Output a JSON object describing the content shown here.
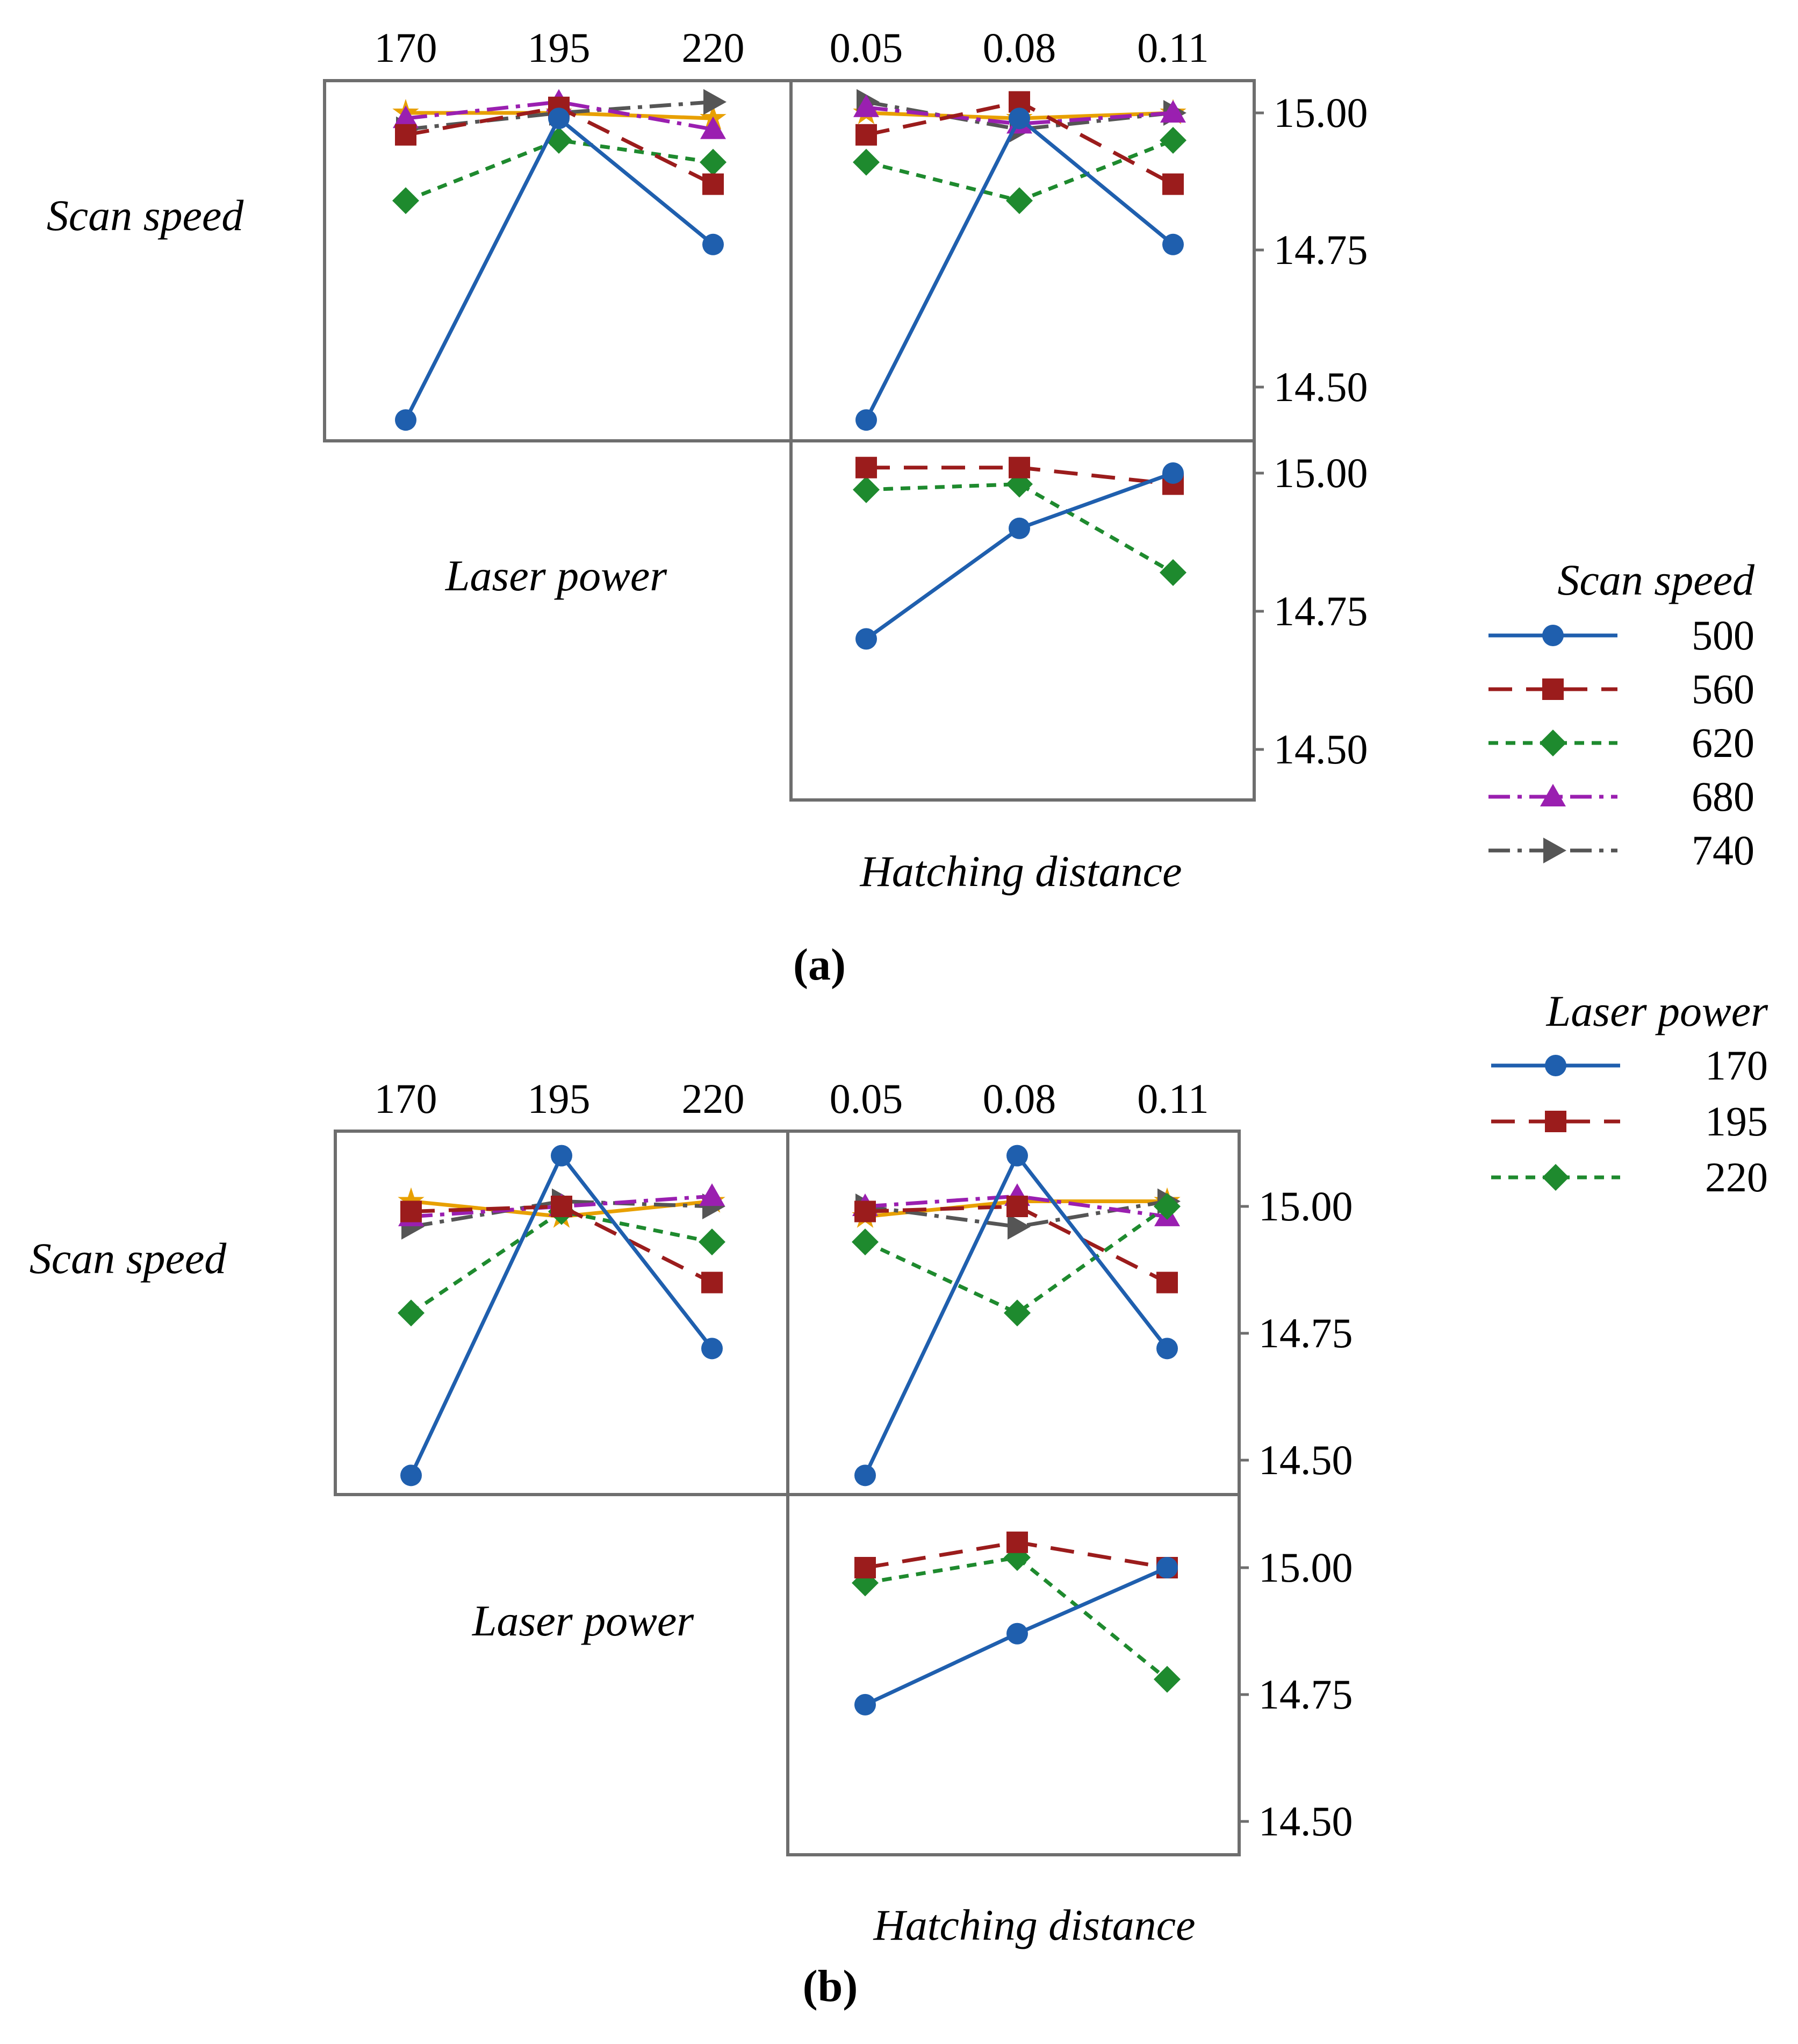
{
  "figure": {
    "panels": [
      {
        "id": "a",
        "caption": "(a)",
        "legend": {
          "title": "Scan speed",
          "entries": [
            {
              "label": "500",
              "color": "#1f5fae",
              "marker": "circle",
              "dash": "solid"
            },
            {
              "label": "560",
              "color": "#9b1c1c",
              "marker": "square",
              "dash": "long-dash"
            },
            {
              "label": "620",
              "color": "#1e8a2e",
              "marker": "diamond",
              "dash": "short-dash"
            },
            {
              "label": "680",
              "color": "#9a1fb0",
              "marker": "triangle-up",
              "dash": "dash-dot"
            },
            {
              "label": "740",
              "color": "#555555",
              "marker": "triangle-right",
              "dash": "dash-dot"
            }
          ]
        },
        "factor_labels": {
          "left": "Scan speed",
          "middle": "Laser power",
          "bottom": "Hatching distance"
        },
        "top_ticks": {
          "laser_power": [
            "170",
            "195",
            "220"
          ],
          "hatching_distance": [
            "0.05",
            "0.08",
            "0.11"
          ]
        },
        "y_ticks": {
          "upper": [
            "15.00",
            "14.75",
            "14.50"
          ],
          "lower": [
            "15.00",
            "14.75",
            "14.50"
          ]
        }
      },
      {
        "id": "b",
        "caption": "(b)",
        "legend": {
          "title": "Laser power",
          "entries": [
            {
              "label": "170",
              "color": "#1f5fae",
              "marker": "circle",
              "dash": "solid"
            },
            {
              "label": "195",
              "color": "#9b1c1c",
              "marker": "square",
              "dash": "long-dash"
            },
            {
              "label": "220",
              "color": "#1e8a2e",
              "marker": "diamond",
              "dash": "short-dash"
            }
          ]
        },
        "factor_labels": {
          "left": "Scan speed",
          "middle": "Laser power",
          "bottom": "Hatching distance"
        },
        "top_ticks": {
          "laser_power": [
            "170",
            "195",
            "220"
          ],
          "hatching_distance": [
            "0.05",
            "0.08",
            "0.11"
          ]
        },
        "y_ticks": {
          "upper": [
            "15.00",
            "14.75",
            "14.50"
          ],
          "lower": [
            "15.00",
            "14.75",
            "14.50"
          ]
        }
      }
    ]
  },
  "chart_data": [
    {
      "type": "line",
      "panel": "a",
      "subplot": "Scan speed x Laser power",
      "legend_title": "Scan speed",
      "categories": [
        "170",
        "195",
        "220"
      ],
      "ylim": [
        14.41,
        15.06
      ],
      "series": [
        {
          "name": "500",
          "values": [
            14.44,
            14.99,
            14.76
          ]
        },
        {
          "name": "560",
          "values": [
            14.96,
            15.01,
            14.87
          ]
        },
        {
          "name": "620",
          "values": [
            14.84,
            14.95,
            14.91
          ]
        },
        {
          "name": "680",
          "values": [
            14.99,
            15.02,
            14.97
          ]
        },
        {
          "name": "740",
          "values": [
            14.97,
            15.0,
            15.02
          ]
        },
        {
          "name": "",
          "color": "#e8a000",
          "values": [
            15.0,
            15.0,
            14.99
          ]
        }
      ]
    },
    {
      "type": "line",
      "panel": "a",
      "subplot": "Scan speed x Hatching distance",
      "legend_title": "Scan speed",
      "categories": [
        "0.05",
        "0.08",
        "0.11"
      ],
      "ylim": [
        14.41,
        15.06
      ],
      "series": [
        {
          "name": "500",
          "values": [
            14.44,
            14.99,
            14.76
          ]
        },
        {
          "name": "560",
          "values": [
            14.96,
            15.02,
            14.87
          ]
        },
        {
          "name": "620",
          "values": [
            14.91,
            14.84,
            14.95
          ]
        },
        {
          "name": "680",
          "values": [
            15.01,
            14.98,
            15.0
          ]
        },
        {
          "name": "740",
          "values": [
            15.02,
            14.97,
            15.0
          ]
        },
        {
          "name": "",
          "color": "#e8a000",
          "values": [
            15.0,
            14.99,
            15.0
          ]
        }
      ]
    },
    {
      "type": "line",
      "panel": "a",
      "subplot": "Laser power x Hatching distance",
      "legend_title": "Laser power",
      "categories": [
        "0.05",
        "0.08",
        "0.11"
      ],
      "ylim": [
        14.41,
        15.06
      ],
      "series": [
        {
          "name": "170",
          "values": [
            14.7,
            14.9,
            15.0
          ]
        },
        {
          "name": "195",
          "values": [
            15.01,
            15.01,
            14.98
          ]
        },
        {
          "name": "220",
          "values": [
            14.97,
            14.98,
            14.82
          ]
        }
      ]
    },
    {
      "type": "line",
      "panel": "b",
      "subplot": "Scan speed x Laser power",
      "legend_title": "Scan speed",
      "categories": [
        "170",
        "195",
        "220"
      ],
      "ylim": [
        14.43,
        15.14
      ],
      "series": [
        {
          "name": "500",
          "values": [
            14.47,
            15.1,
            14.72
          ]
        },
        {
          "name": "560",
          "values": [
            14.99,
            15.0,
            14.85
          ]
        },
        {
          "name": "620",
          "values": [
            14.79,
            14.99,
            14.93
          ]
        },
        {
          "name": "680",
          "values": [
            14.98,
            15.0,
            15.02
          ]
        },
        {
          "name": "740",
          "values": [
            14.96,
            15.01,
            15.0
          ]
        },
        {
          "name": "",
          "color": "#e8a000",
          "values": [
            15.01,
            14.98,
            15.01
          ]
        }
      ]
    },
    {
      "type": "line",
      "panel": "b",
      "subplot": "Scan speed x Hatching distance",
      "legend_title": "Scan speed",
      "categories": [
        "0.05",
        "0.08",
        "0.11"
      ],
      "ylim": [
        14.43,
        15.14
      ],
      "series": [
        {
          "name": "500",
          "values": [
            14.47,
            15.1,
            14.72
          ]
        },
        {
          "name": "560",
          "values": [
            14.99,
            15.0,
            14.85
          ]
        },
        {
          "name": "620",
          "values": [
            14.93,
            14.79,
            15.0
          ]
        },
        {
          "name": "680",
          "values": [
            15.0,
            15.02,
            14.98
          ]
        },
        {
          "name": "740",
          "values": [
            15.0,
            14.96,
            15.01
          ]
        },
        {
          "name": "",
          "color": "#e8a000",
          "values": [
            14.98,
            15.01,
            15.01
          ]
        }
      ]
    },
    {
      "type": "line",
      "panel": "b",
      "subplot": "Laser power x Hatching distance",
      "legend_title": "Laser power",
      "categories": [
        "0.05",
        "0.08",
        "0.11"
      ],
      "ylim": [
        14.43,
        15.14
      ],
      "series": [
        {
          "name": "170",
          "values": [
            14.73,
            14.87,
            15.0
          ]
        },
        {
          "name": "195",
          "values": [
            15.0,
            15.05,
            15.0
          ]
        },
        {
          "name": "220",
          "values": [
            14.97,
            15.02,
            14.78
          ]
        }
      ]
    }
  ]
}
